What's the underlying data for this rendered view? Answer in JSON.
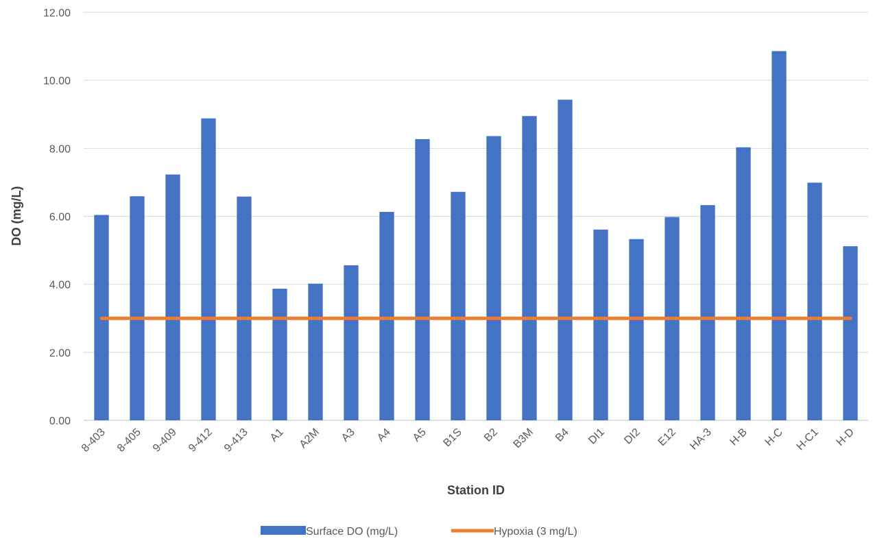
{
  "chart_data": {
    "type": "bar",
    "title": "",
    "xlabel": "Station ID",
    "ylabel": "DO (mg/L)",
    "ylim": [
      0,
      12
    ],
    "ytick_step": 2,
    "ytick_decimals": 2,
    "grid": true,
    "legend_position": "bottom",
    "categories": [
      "8-403",
      "8-405",
      "9-409",
      "9-412",
      "9-413",
      "A1",
      "A2M",
      "A3",
      "A4",
      "A5",
      "B1S",
      "B2",
      "B3M",
      "B4",
      "DI1",
      "DI2",
      "E12",
      "HA-3",
      "H-B",
      "H-C",
      "H-C1",
      "H-D"
    ],
    "series": [
      {
        "name": "Surface DO (mg/L)",
        "kind": "bar",
        "color": "#4472C4",
        "values": [
          6.04,
          6.59,
          7.23,
          8.88,
          6.58,
          3.87,
          4.02,
          4.56,
          6.13,
          8.27,
          6.72,
          8.36,
          8.95,
          9.43,
          5.61,
          5.33,
          5.98,
          6.33,
          8.03,
          10.86,
          6.99,
          5.12
        ]
      },
      {
        "name": "Hypoxia (3 mg/L)",
        "kind": "line",
        "color": "#ED7D31",
        "values": [
          3,
          3,
          3,
          3,
          3,
          3,
          3,
          3,
          3,
          3,
          3,
          3,
          3,
          3,
          3,
          3,
          3,
          3,
          3,
          3,
          3,
          3
        ]
      }
    ]
  }
}
